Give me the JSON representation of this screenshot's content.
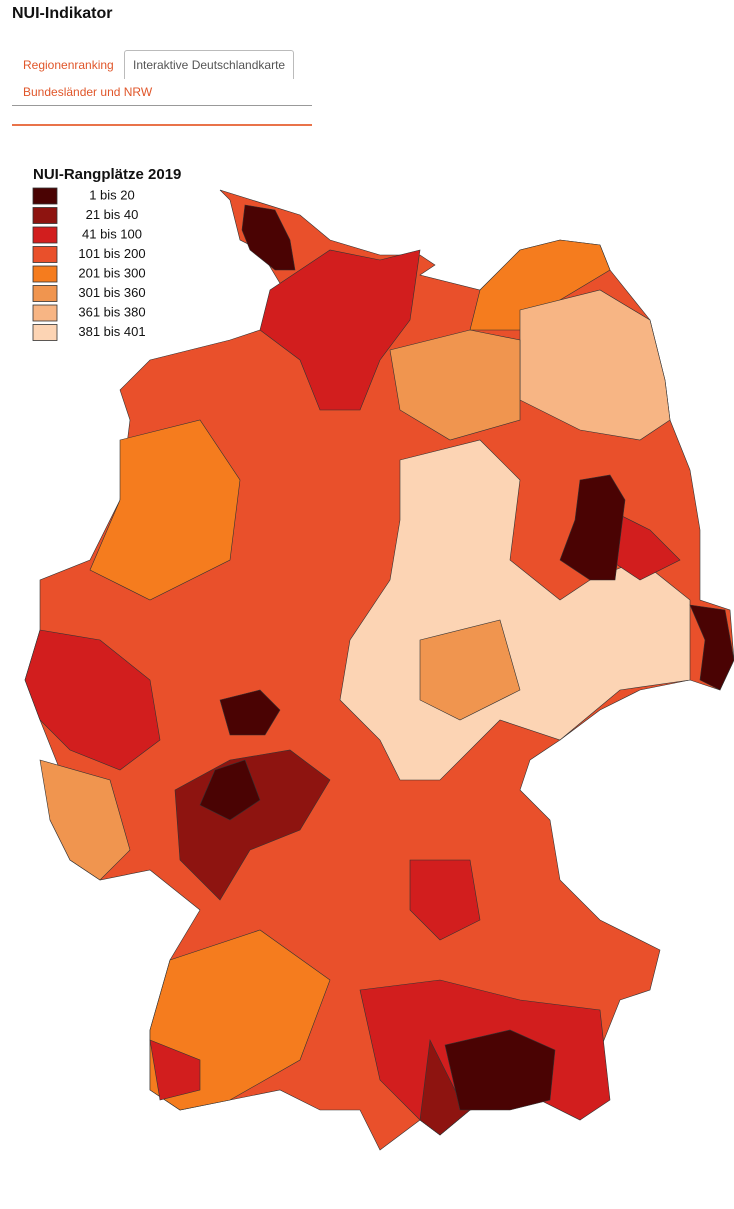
{
  "header": {
    "title": "NUI-Indikator"
  },
  "tabs": [
    "Regionenranking",
    "Interaktive Deutschlandkarte",
    "Bundesländer und NRW"
  ],
  "active_tab": 1,
  "map": {
    "legend": {
      "title": "NUI-Rangplätze 2019",
      "items": [
        {
          "label": "1 bis 20",
          "color": "#4a0303"
        },
        {
          "label": "21 bis 40",
          "color": "#8e1410"
        },
        {
          "label": "41 bis 100",
          "color": "#d21e1e"
        },
        {
          "label": "101 bis 200",
          "color": "#e9502b"
        },
        {
          "label": "201 bis 300",
          "color": "#f57c1e"
        },
        {
          "label": "301 bis 360",
          "color": "#f0954f"
        },
        {
          "label": "361 bis 380",
          "color": "#f7b584"
        },
        {
          "label": "381 bis 401",
          "color": "#fcd4b4"
        }
      ]
    }
  }
}
